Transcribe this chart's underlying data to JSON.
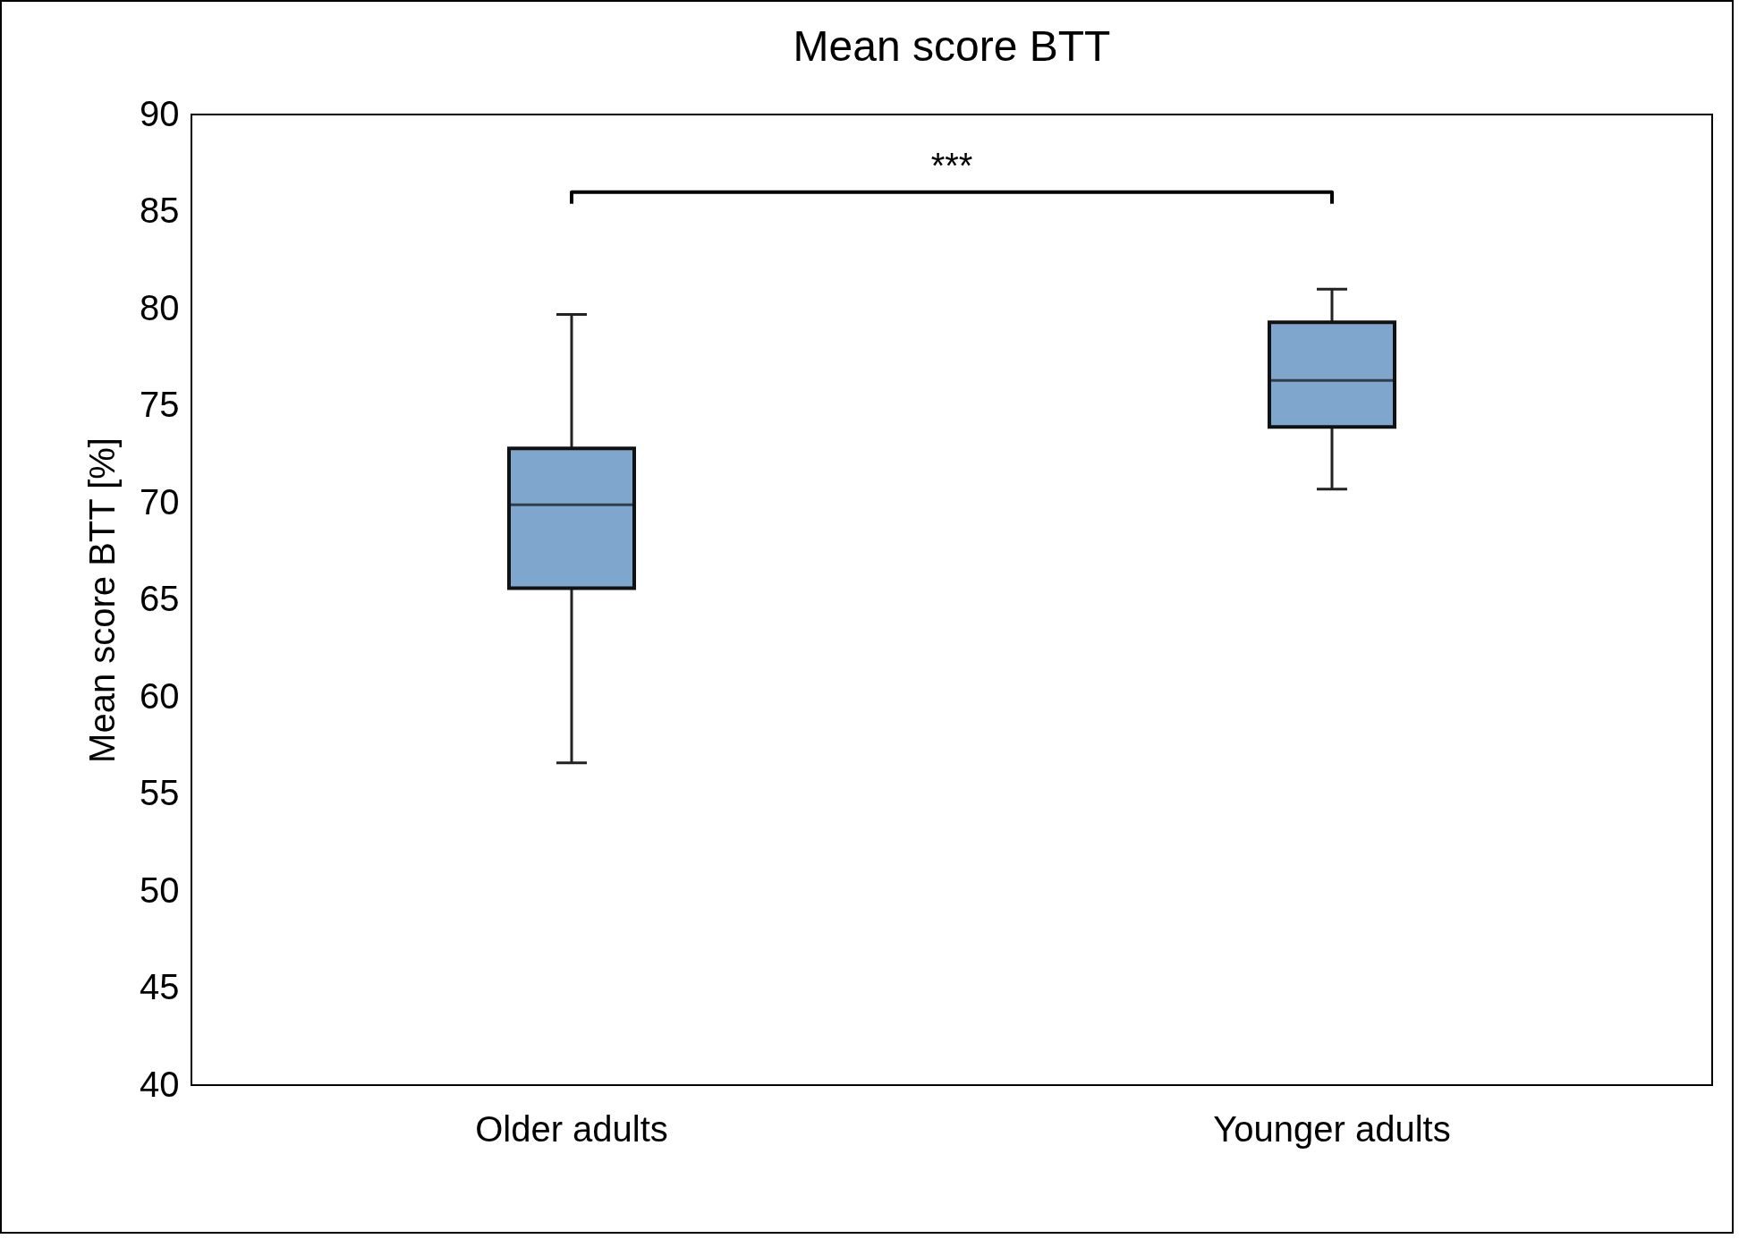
{
  "chart_data": {
    "type": "box",
    "title": "Mean score BTT",
    "ylabel": "Mean score BTT [%]",
    "categories": [
      "Older adults",
      "Younger adults"
    ],
    "series": [
      {
        "color": "#7fa7cd",
        "boxes": [
          {
            "low": 56.6,
            "q1": 65.6,
            "median": 69.9,
            "q3": 72.8,
            "high": 79.7
          },
          {
            "low": 70.7,
            "q1": 73.9,
            "median": 76.3,
            "q3": 79.3,
            "high": 81.0
          }
        ]
      }
    ],
    "ylim": [
      40,
      90
    ],
    "yticks": [
      40,
      45,
      50,
      55,
      60,
      65,
      70,
      75,
      80,
      85,
      90
    ],
    "annotations": [
      "***"
    ]
  }
}
